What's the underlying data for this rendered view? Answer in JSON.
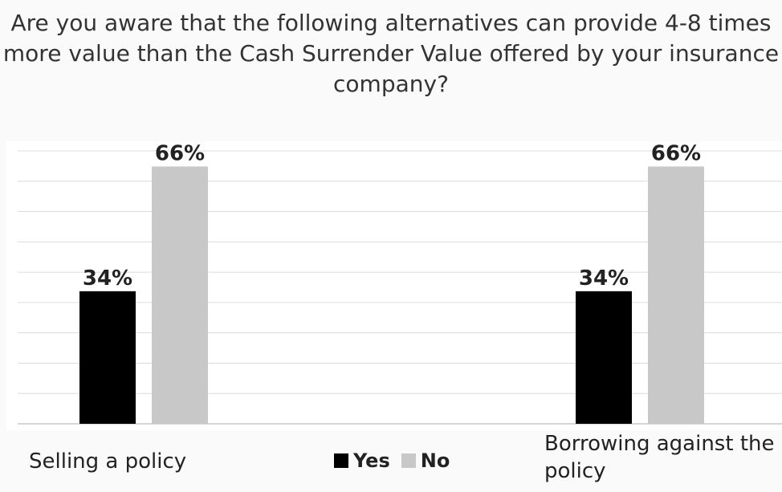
{
  "chart_data": {
    "type": "bar",
    "title": "Are you aware that the following alternatives can provide 4-8 times more value than the Cash Surrender Value offered by your insurance company?",
    "categories": [
      "Selling a policy",
      "Borrowing against the policy"
    ],
    "series": [
      {
        "name": "Yes",
        "values": [
          34,
          34
        ],
        "labels": [
          "34%",
          "34%"
        ],
        "color": "#000000"
      },
      {
        "name": "No",
        "values": [
          66,
          66
        ],
        "labels": [
          "66%",
          "66%"
        ],
        "color": "#c8c8c8"
      }
    ],
    "ylim": [
      0,
      70
    ],
    "grid": true,
    "legend_position": "bottom-center"
  }
}
